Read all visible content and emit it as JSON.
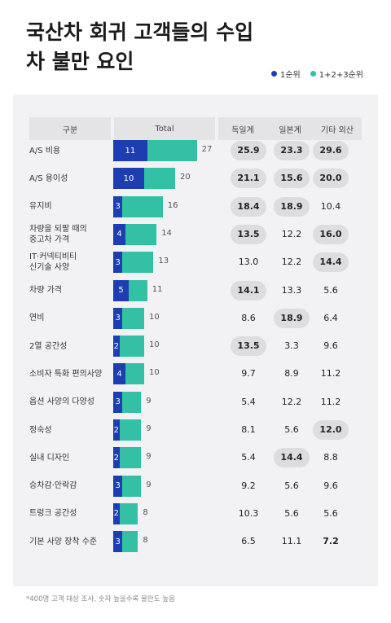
{
  "title": "국산차 회귀 고객들의 수입차 불만 요인",
  "legend": {
    "first": "1순위",
    "total": "1+2+3순위"
  },
  "colors": {
    "first": "#1d3db0",
    "total": "#33c0a5"
  },
  "headers": [
    "구분",
    "Total",
    "독일계",
    "일본계",
    "기타 외산"
  ],
  "footnote": "*400명 고객 대상 조사, 숫자 높을수록 불만도 높음",
  "chart_data": {
    "type": "bar",
    "categories": [
      "A/S 비용",
      "A/S 용이성",
      "유지비",
      "차량을 되팔 때의\n중고차 가격",
      "IT·커넥티비티\n신기술 사양",
      "차량 가격",
      "연비",
      "2열 공간성",
      "소비자 특화 편의사양",
      "옵션 사양의 다양성",
      "정숙성",
      "실내 디자인",
      "승차감·안락감",
      "트렁크 공간성",
      "기본 사양 장착 수준"
    ],
    "series": [
      {
        "name": "1순위",
        "values": [
          11,
          10,
          3,
          4,
          3,
          5,
          3,
          2,
          4,
          3,
          2,
          2,
          3,
          2,
          3
        ]
      },
      {
        "name": "1+2+3순위",
        "values": [
          27,
          20,
          16,
          14,
          13,
          11,
          10,
          10,
          10,
          9,
          9,
          9,
          9,
          8,
          8
        ]
      }
    ],
    "table": {
      "columns": [
        "독일계",
        "일본계",
        "기타 외산"
      ],
      "rows": [
        [
          "25.9",
          "23.3",
          "29.6"
        ],
        [
          "21.1",
          "15.6",
          "20.0"
        ],
        [
          "18.4",
          "18.9",
          "10.4"
        ],
        [
          "13.5",
          "12.2",
          "16.0"
        ],
        [
          "13.0",
          "12.2",
          "14.4"
        ],
        [
          "14.1",
          "13.3",
          "5.6"
        ],
        [
          "8.6",
          "18.9",
          "6.4"
        ],
        [
          "13.5",
          "3.3",
          "9.6"
        ],
        [
          "9.7",
          "8.9",
          "11.2"
        ],
        [
          "5.4",
          "12.2",
          "11.2"
        ],
        [
          "8.1",
          "5.6",
          "12.0"
        ],
        [
          "5.4",
          "14.4",
          "8.8"
        ],
        [
          "9.2",
          "5.6",
          "9.6"
        ],
        [
          "10.3",
          "5.6",
          "5.6"
        ],
        [
          "6.5",
          "11.1",
          "7.2"
        ]
      ],
      "highlighted": [
        [
          true,
          true,
          true
        ],
        [
          true,
          true,
          true
        ],
        [
          true,
          true,
          false
        ],
        [
          true,
          false,
          true
        ],
        [
          false,
          false,
          true
        ],
        [
          true,
          false,
          false
        ],
        [
          false,
          true,
          false
        ],
        [
          true,
          false,
          false
        ],
        [
          false,
          false,
          false
        ],
        [
          false,
          false,
          false
        ],
        [
          false,
          false,
          true
        ],
        [
          false,
          true,
          false
        ],
        [
          false,
          false,
          false
        ],
        [
          false,
          false,
          false
        ],
        [
          false,
          false,
          false
        ]
      ],
      "bold": [
        [
          true,
          true,
          true
        ],
        [
          true,
          true,
          true
        ],
        [
          true,
          true,
          false
        ],
        [
          true,
          false,
          true
        ],
        [
          false,
          false,
          true
        ],
        [
          true,
          false,
          false
        ],
        [
          false,
          true,
          false
        ],
        [
          true,
          false,
          false
        ],
        [
          false,
          false,
          false
        ],
        [
          false,
          false,
          false
        ],
        [
          false,
          false,
          true
        ],
        [
          false,
          true,
          false
        ],
        [
          false,
          false,
          false
        ],
        [
          false,
          false,
          false
        ],
        [
          false,
          false,
          true
        ]
      ]
    }
  }
}
